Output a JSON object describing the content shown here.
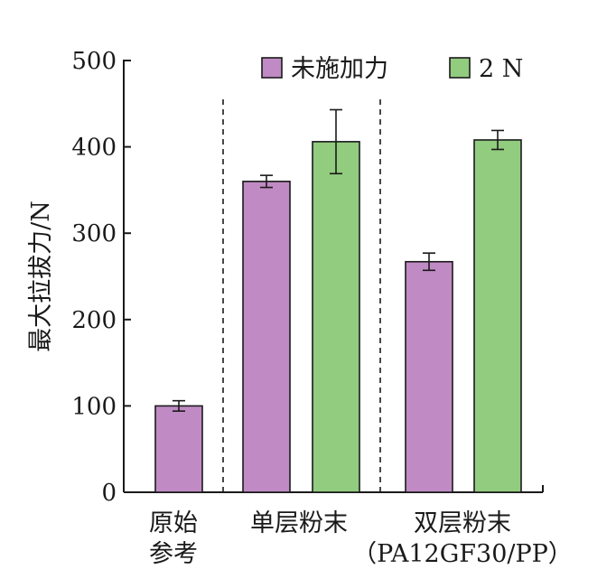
{
  "colors": {
    "series_0": "#c08ac4",
    "series_1": "#92cc7e",
    "bar_stroke": "#1a1a1a",
    "axis": "#1a1a1a"
  },
  "chart_data": {
    "type": "bar",
    "title": "",
    "xlabel": "",
    "ylabel": "最大拉拔力/N",
    "ylim": [
      0,
      500
    ],
    "yticks": [
      0,
      100,
      200,
      300,
      400,
      500
    ],
    "grid": false,
    "legend_position": "top-right",
    "group_separators": "dashed",
    "groups": [
      {
        "label_lines": [
          "原始",
          "参考"
        ],
        "bars": [
          {
            "series": 0,
            "value": 100,
            "error": 6
          }
        ]
      },
      {
        "label_lines": [
          "单层粉末"
        ],
        "bars": [
          {
            "series": 0,
            "value": 360,
            "error": 7
          },
          {
            "series": 1,
            "value": 406,
            "error": 37
          }
        ]
      },
      {
        "label_lines": [
          "双层粉末",
          "（PA12GF30/PP）"
        ],
        "bars": [
          {
            "series": 0,
            "value": 267,
            "error": 10
          },
          {
            "series": 1,
            "value": 408,
            "error": 11
          }
        ]
      }
    ],
    "series": [
      {
        "name": "未施加力"
      },
      {
        "name": "2 N"
      }
    ]
  }
}
